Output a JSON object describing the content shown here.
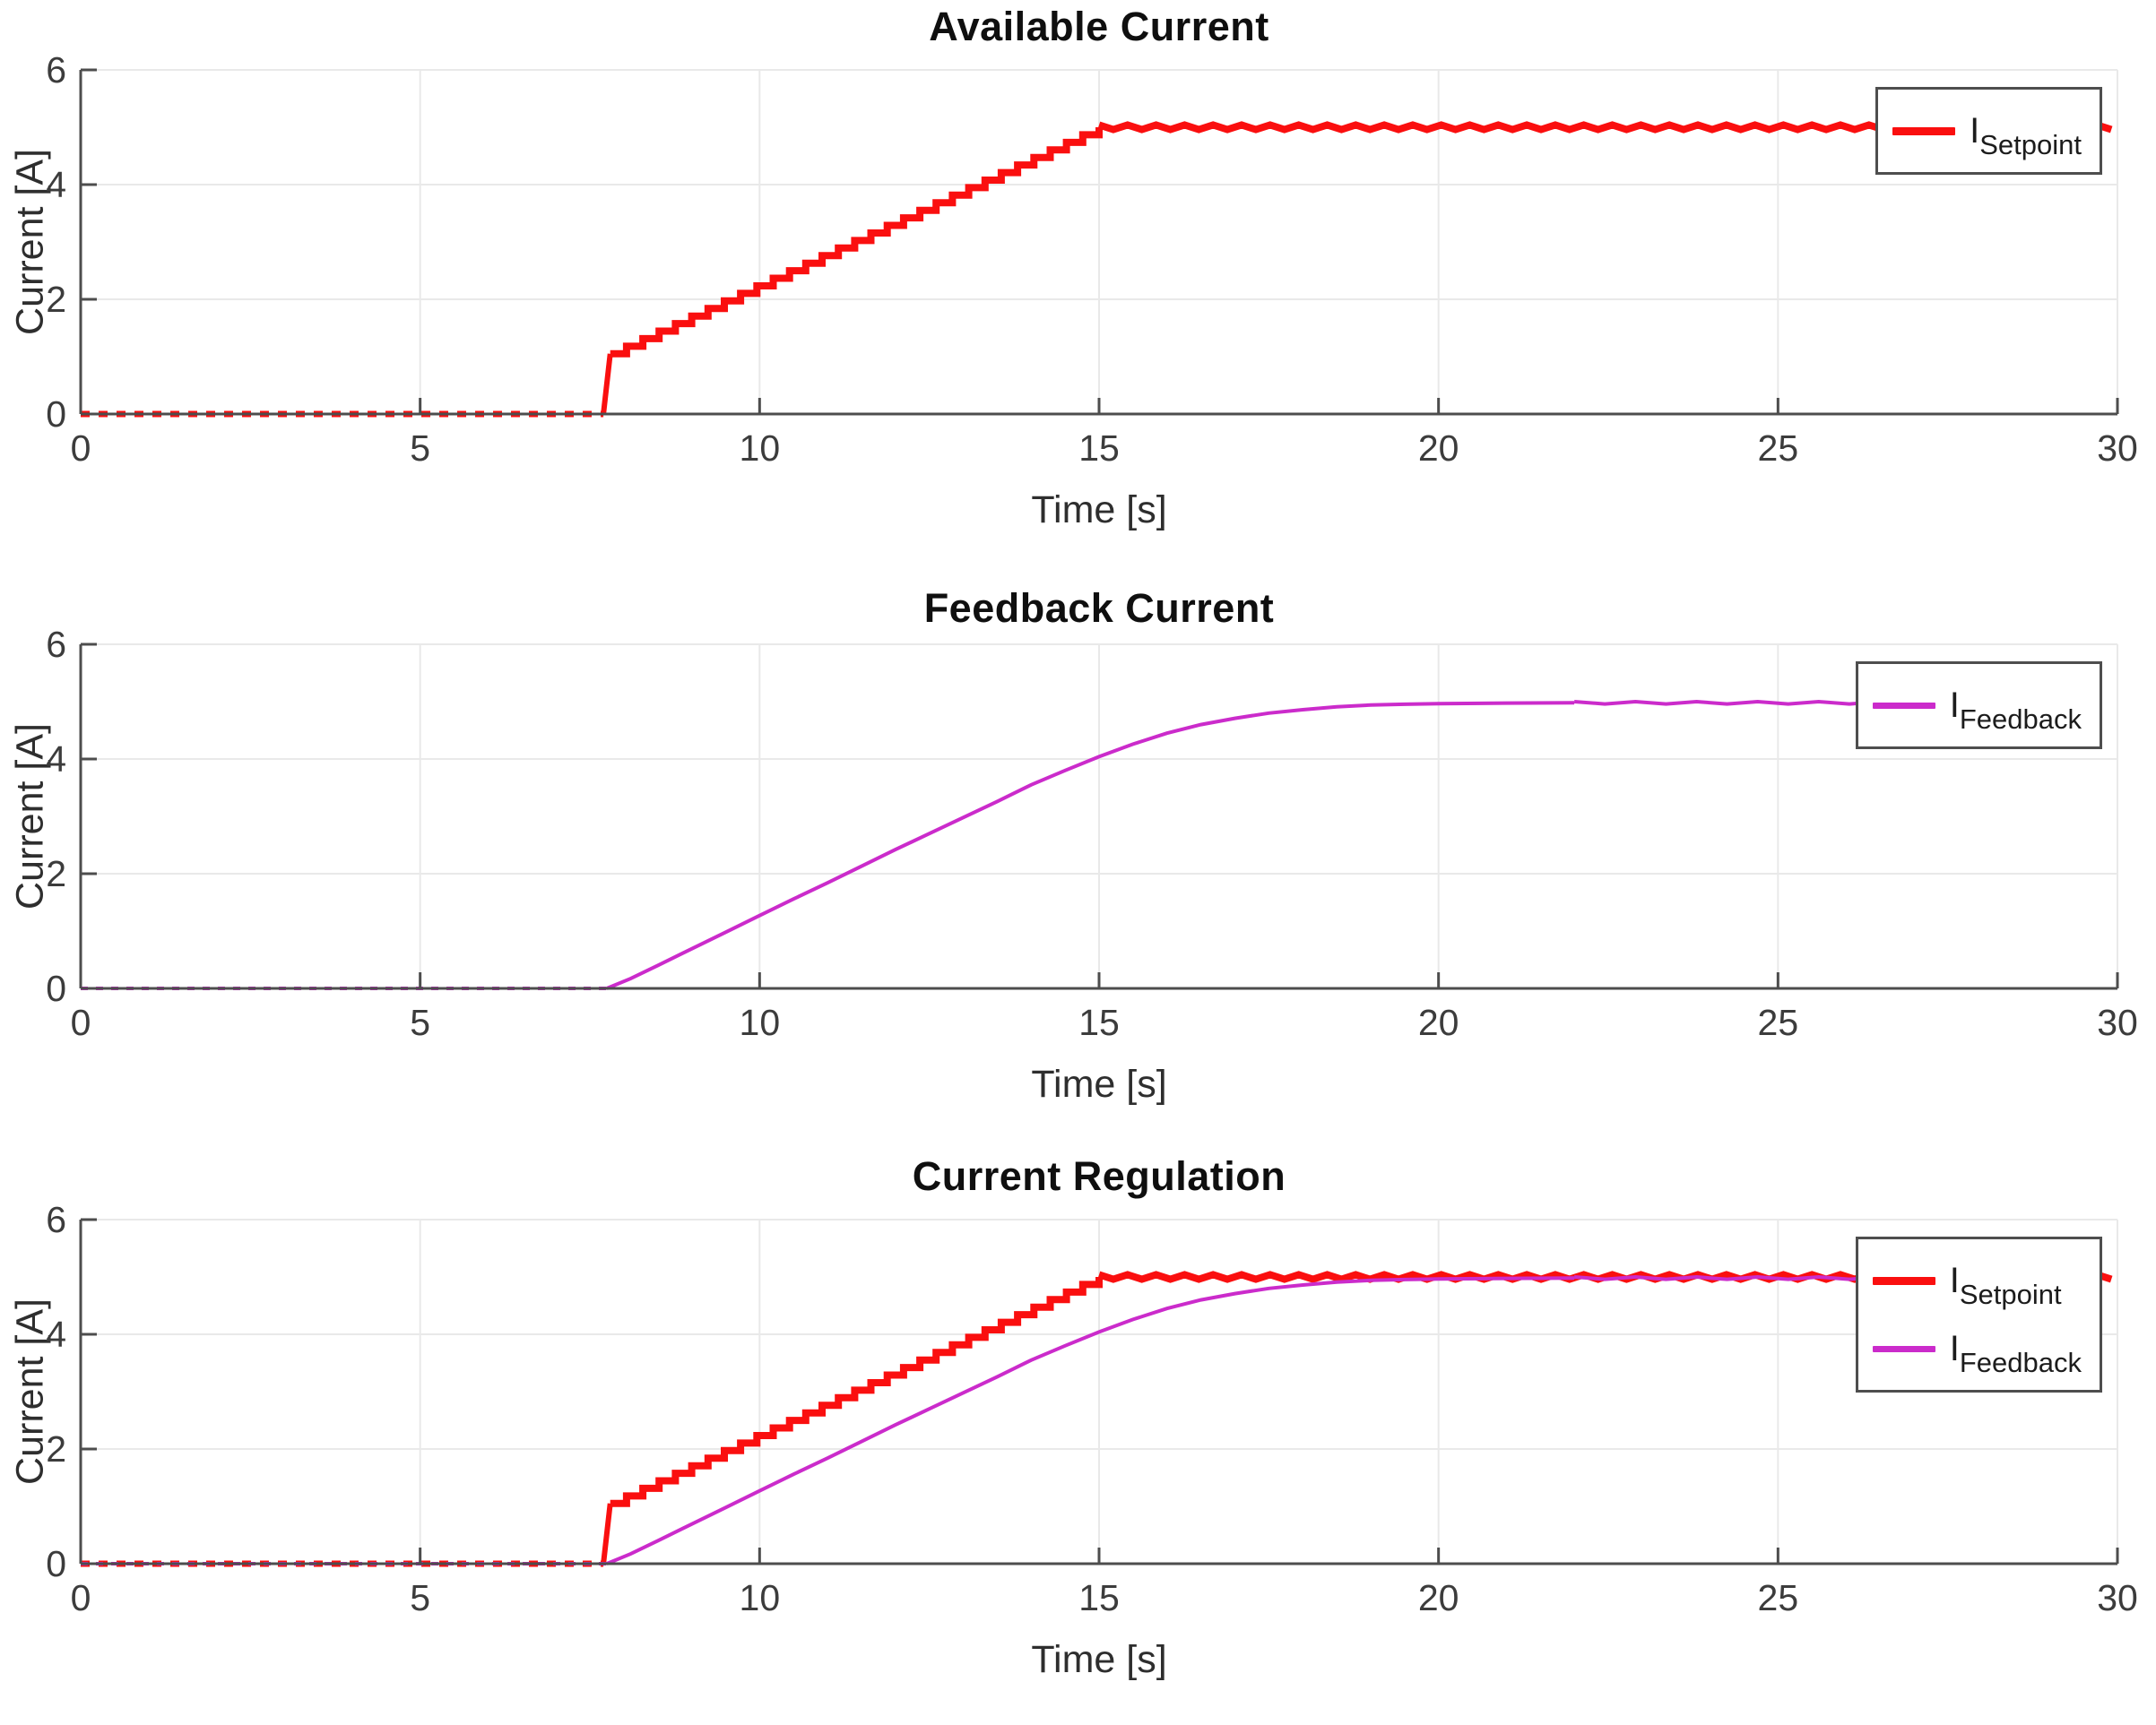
{
  "figure": {
    "background": "#ffffff",
    "colors": {
      "setpoint": "#fa0f0f",
      "feedback": "#cb2bcb",
      "grid": "#e9e9e9",
      "axis": "#4d4d4d",
      "tick_label": "#3c3c3c",
      "title": "#0f0f0f",
      "legend_border": "#4e4e4e",
      "legend_bg": "#ffffff"
    }
  },
  "chart_data": [
    {
      "type": "line",
      "title": "Available Current",
      "xlabel": "Time [s]",
      "ylabel": "Current [A]",
      "xlim": [
        0,
        30
      ],
      "ylim": [
        0,
        6
      ],
      "x_ticks": [
        0,
        5,
        10,
        15,
        20,
        25,
        30
      ],
      "y_ticks": [
        0,
        2,
        4,
        6
      ],
      "grid": true,
      "legend_position": "top-right",
      "legend": [
        {
          "main": "I",
          "sub": "Setpoint",
          "color": "#fa0f0f",
          "thickness": 9
        }
      ],
      "series": [
        {
          "name": "I_Setpoint",
          "color": "#fa0f0f",
          "width": 8,
          "segments": [
            {
              "style": "dotted",
              "points": [
                [
                  0,
                  0
                ],
                [
                  7.7,
                  0
                ]
              ],
              "width": 7,
              "dash": [
                10,
                10
              ]
            },
            {
              "style": "solid",
              "points": [
                [
                  7.7,
                  0
                ],
                [
                  7.8,
                  1.05
                ]
              ],
              "width": 6
            },
            {
              "style": "stairs",
              "from": [
                7.8,
                1.05
              ],
              "to": [
                15,
                5.0
              ],
              "steps": 30
            },
            {
              "style": "ripple",
              "from": [
                15,
                5.0
              ],
              "to": [
                30,
                5.0
              ],
              "amp": 0.04,
              "period": 0.42
            }
          ]
        }
      ]
    },
    {
      "type": "line",
      "title": "Feedback Current",
      "xlabel": "Time [s]",
      "ylabel": "Current [A]",
      "xlim": [
        0,
        30
      ],
      "ylim": [
        0,
        6
      ],
      "x_ticks": [
        0,
        5,
        10,
        15,
        20,
        25,
        30
      ],
      "y_ticks": [
        0,
        2,
        4,
        6
      ],
      "grid": true,
      "legend_position": "top-right",
      "legend": [
        {
          "main": "I",
          "sub": "Feedback",
          "color": "#cb2bcb",
          "thickness": 7
        }
      ],
      "series": [
        {
          "name": "I_Feedback",
          "color": "#cb2bcb",
          "width": 4,
          "segments": [
            {
              "style": "dotted",
              "points": [
                [
                  0,
                  0
                ],
                [
                  7.75,
                  0
                ]
              ],
              "width": 4,
              "dash": [
                8,
                9
              ]
            },
            {
              "style": "solid",
              "points": [
                [
                  7.75,
                  0
                ],
                [
                  8.1,
                  0.17
                ],
                [
                  8.5,
                  0.4
                ],
                [
                  9,
                  0.69
                ],
                [
                  9.5,
                  0.98
                ],
                [
                  10,
                  1.27
                ],
                [
                  10.5,
                  1.56
                ],
                [
                  11,
                  1.84
                ],
                [
                  11.5,
                  2.13
                ],
                [
                  12,
                  2.42
                ],
                [
                  12.5,
                  2.7
                ],
                [
                  13,
                  2.98
                ],
                [
                  13.5,
                  3.26
                ],
                [
                  14,
                  3.55
                ],
                [
                  14.5,
                  3.8
                ],
                [
                  15,
                  4.04
                ],
                [
                  15.5,
                  4.26
                ],
                [
                  16,
                  4.45
                ],
                [
                  16.5,
                  4.6
                ],
                [
                  17,
                  4.71
                ],
                [
                  17.5,
                  4.8
                ],
                [
                  18,
                  4.86
                ],
                [
                  18.5,
                  4.91
                ],
                [
                  19,
                  4.94
                ],
                [
                  19.5,
                  4.955
                ],
                [
                  20,
                  4.965
                ],
                [
                  21,
                  4.975
                ],
                [
                  22,
                  4.98
                ]
              ]
            },
            {
              "style": "ripple",
              "from": [
                22,
                4.98
              ],
              "to": [
                30,
                4.98
              ],
              "amp": 0.02,
              "period": 0.9
            }
          ]
        }
      ]
    },
    {
      "type": "line",
      "title": "Current Regulation",
      "xlabel": "Time [s]",
      "ylabel": "Current [A]",
      "xlim": [
        0,
        30
      ],
      "ylim": [
        0,
        6
      ],
      "x_ticks": [
        0,
        5,
        10,
        15,
        20,
        25,
        30
      ],
      "y_ticks": [
        0,
        2,
        4,
        6
      ],
      "grid": true,
      "legend_position": "top-right",
      "legend": [
        {
          "main": "I",
          "sub": "Setpoint",
          "color": "#fa0f0f",
          "thickness": 9
        },
        {
          "main": "I",
          "sub": "Feedback",
          "color": "#cb2bcb",
          "thickness": 7
        }
      ],
      "series": [
        {
          "name": "I_Setpoint",
          "color": "#fa0f0f",
          "width": 8,
          "segments": [
            {
              "style": "dotted",
              "points": [
                [
                  0,
                  0
                ],
                [
                  7.7,
                  0
                ]
              ],
              "width": 7,
              "dash": [
                10,
                10
              ]
            },
            {
              "style": "solid",
              "points": [
                [
                  7.7,
                  0
                ],
                [
                  7.8,
                  1.05
                ]
              ],
              "width": 6
            },
            {
              "style": "stairs",
              "from": [
                7.8,
                1.05
              ],
              "to": [
                15,
                5.0
              ],
              "steps": 30
            },
            {
              "style": "ripple",
              "from": [
                15,
                5.0
              ],
              "to": [
                30,
                5.0
              ],
              "amp": 0.04,
              "period": 0.42
            }
          ]
        },
        {
          "name": "I_Feedback",
          "color": "#cb2bcb",
          "width": 4,
          "segments": [
            {
              "style": "dotted",
              "points": [
                [
                  0,
                  0
                ],
                [
                  7.75,
                  0
                ]
              ],
              "width": 4,
              "dash": [
                8,
                9
              ]
            },
            {
              "style": "solid",
              "points": [
                [
                  7.75,
                  0
                ],
                [
                  8.1,
                  0.17
                ],
                [
                  8.5,
                  0.4
                ],
                [
                  9,
                  0.69
                ],
                [
                  9.5,
                  0.98
                ],
                [
                  10,
                  1.27
                ],
                [
                  10.5,
                  1.56
                ],
                [
                  11,
                  1.84
                ],
                [
                  11.5,
                  2.13
                ],
                [
                  12,
                  2.42
                ],
                [
                  12.5,
                  2.7
                ],
                [
                  13,
                  2.98
                ],
                [
                  13.5,
                  3.26
                ],
                [
                  14,
                  3.55
                ],
                [
                  14.5,
                  3.8
                ],
                [
                  15,
                  4.04
                ],
                [
                  15.5,
                  4.26
                ],
                [
                  16,
                  4.45
                ],
                [
                  16.5,
                  4.6
                ],
                [
                  17,
                  4.71
                ],
                [
                  17.5,
                  4.8
                ],
                [
                  18,
                  4.86
                ],
                [
                  18.5,
                  4.91
                ],
                [
                  19,
                  4.94
                ],
                [
                  19.5,
                  4.955
                ],
                [
                  20,
                  4.965
                ],
                [
                  21,
                  4.975
                ],
                [
                  22,
                  4.98
                ]
              ]
            },
            {
              "style": "ripple",
              "from": [
                22,
                4.98
              ],
              "to": [
                30,
                4.98
              ],
              "amp": 0.02,
              "period": 0.9
            }
          ]
        }
      ]
    }
  ]
}
